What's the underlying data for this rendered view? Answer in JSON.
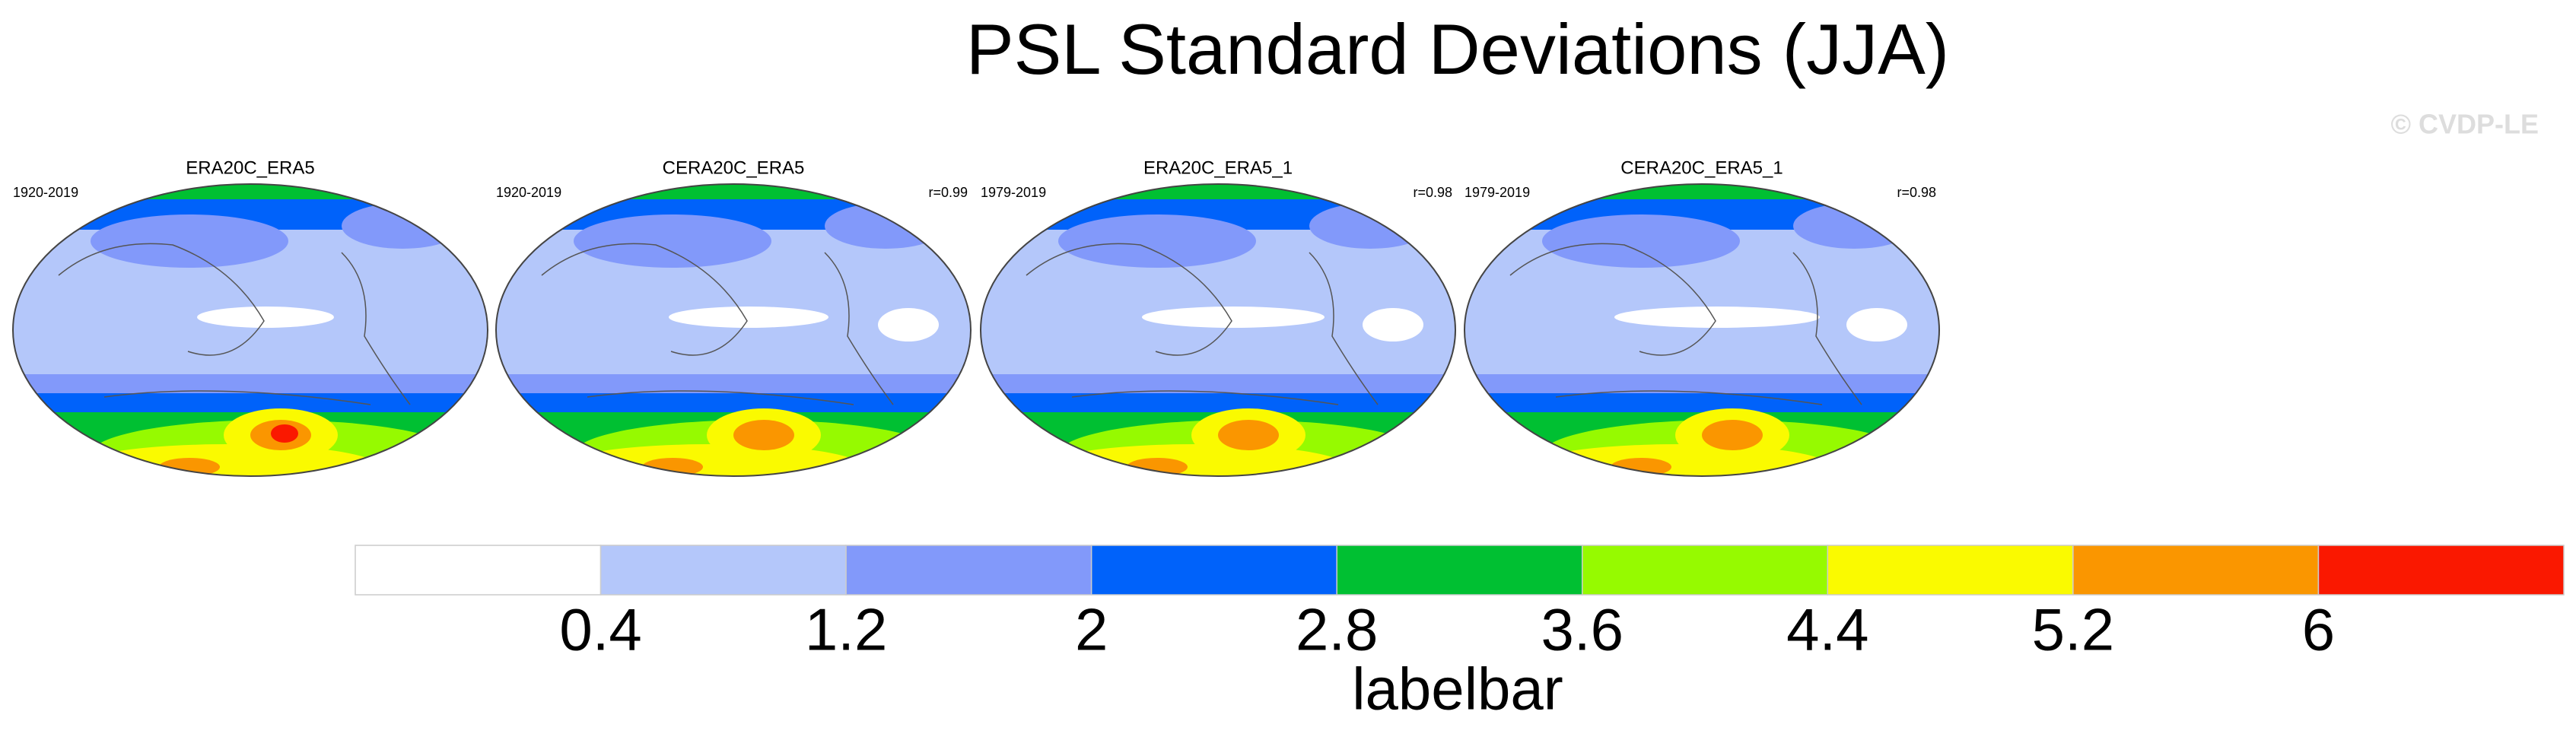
{
  "header": {
    "title": "PSL Standard Deviations (JJA)",
    "watermark": "© CVDP-LE"
  },
  "panels": [
    {
      "title": "ERA20C_ERA5",
      "period": "1920-2019"
    },
    {
      "title": "CERA20C_ERA5",
      "period": "1920-2019",
      "corr": "r=0.99"
    },
    {
      "title": "ERA20C_ERA5_1",
      "period": "1979-2019",
      "corr": "r=0.98"
    },
    {
      "title": "CERA20C_ERA5_1",
      "period": "1979-2019",
      "corr": "r=0.98"
    }
  ],
  "colorbar": {
    "colors": [
      "#ffffff",
      "#b4c7fa",
      "#8299fa",
      "#0062fa",
      "#00c032",
      "#96fa00",
      "#fafa00",
      "#fa9600",
      "#fa1800"
    ],
    "ticks": [
      0.4,
      1.2,
      2,
      2.8,
      3.6,
      4.4,
      5.2,
      6
    ],
    "label": "labelbar"
  }
}
